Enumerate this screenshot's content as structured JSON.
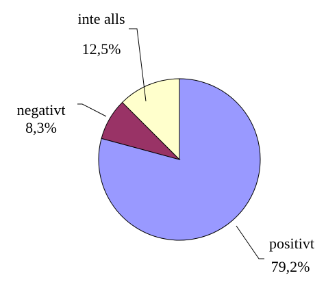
{
  "chart_data": {
    "type": "pie",
    "categories": [
      "positivt",
      "negativt",
      "inte alls"
    ],
    "values": [
      79.2,
      8.3,
      12.5
    ],
    "value_labels": [
      "79,2%",
      "8,3%",
      "12,5%"
    ],
    "colors": [
      "#9999ff",
      "#993366",
      "#ffffcc"
    ]
  }
}
